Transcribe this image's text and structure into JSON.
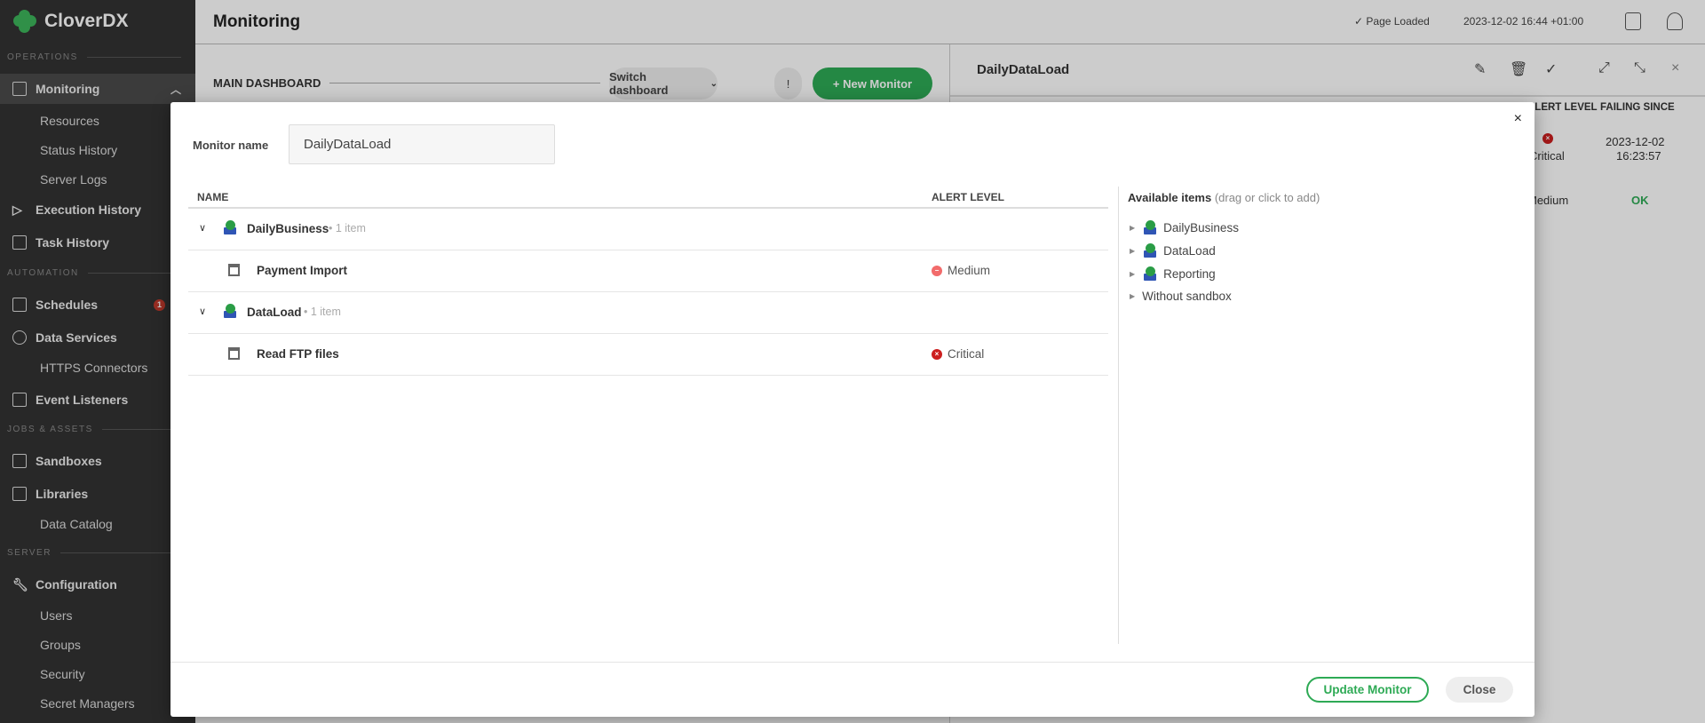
{
  "brand": "CloverDX",
  "sidebar": {
    "sections": [
      "OPERATIONS",
      "AUTOMATION",
      "JOBS & ASSETS",
      "SERVER"
    ],
    "items": [
      {
        "label": "Monitoring",
        "type": "top",
        "active": true
      },
      {
        "label": "Resources",
        "type": "sub"
      },
      {
        "label": "Status History",
        "type": "sub"
      },
      {
        "label": "Server Logs",
        "type": "sub"
      },
      {
        "label": "Execution History",
        "type": "top"
      },
      {
        "label": "Task History",
        "type": "top"
      },
      {
        "label": "Schedules",
        "type": "top",
        "badge": "1"
      },
      {
        "label": "Data Services",
        "type": "top"
      },
      {
        "label": "HTTPS Connectors",
        "type": "sub"
      },
      {
        "label": "Event Listeners",
        "type": "top"
      },
      {
        "label": "Sandboxes",
        "type": "top"
      },
      {
        "label": "Libraries",
        "type": "top"
      },
      {
        "label": "Data Catalog",
        "type": "sub"
      },
      {
        "label": "Configuration",
        "type": "top"
      },
      {
        "label": "Users",
        "type": "sub"
      },
      {
        "label": "Groups",
        "type": "sub"
      },
      {
        "label": "Security",
        "type": "sub"
      },
      {
        "label": "Secret Managers",
        "type": "sub"
      }
    ]
  },
  "header": {
    "title": "Monitoring",
    "status": "✓ Page Loaded",
    "datetime": "2023-12-02 16:44 +01:00"
  },
  "dashboard": {
    "title": "MAIN DASHBOARD",
    "switch_label": "Switch dashboard",
    "alert_label": "!",
    "new_monitor_label": "+  New Monitor"
  },
  "detail": {
    "title": "DailyDataLoad",
    "col_alert": "ALERT LEVEL",
    "col_failing": "FAILING SINCE",
    "row1_level": "Critical",
    "row1_since_date": "2023-12-02",
    "row1_since_time": "16:23:57",
    "row2_level": "Medium",
    "row2_status": "OK"
  },
  "modal": {
    "close": "×",
    "name_label": "Monitor name",
    "name_value": "DailyDataLoad",
    "col_name": "NAME",
    "col_alert": "ALERT LEVEL",
    "groups": [
      {
        "name": "DailyBusiness",
        "count": "• 1 item",
        "item": "Payment Import",
        "level": "Medium"
      },
      {
        "name": "DataLoad",
        "count": "• 1 item",
        "item": "Read FTP files",
        "level": "Critical"
      }
    ],
    "available_title": "Available items",
    "available_hint": "(drag or click to add)",
    "available": [
      "DailyBusiness",
      "DataLoad",
      "Reporting",
      "Without sandbox"
    ],
    "update_label": "Update Monitor",
    "close_label": "Close"
  },
  "colors": {
    "brand_green": "#2eaa55",
    "critical": "#cc1f1f",
    "medium": "#f26b6b"
  }
}
